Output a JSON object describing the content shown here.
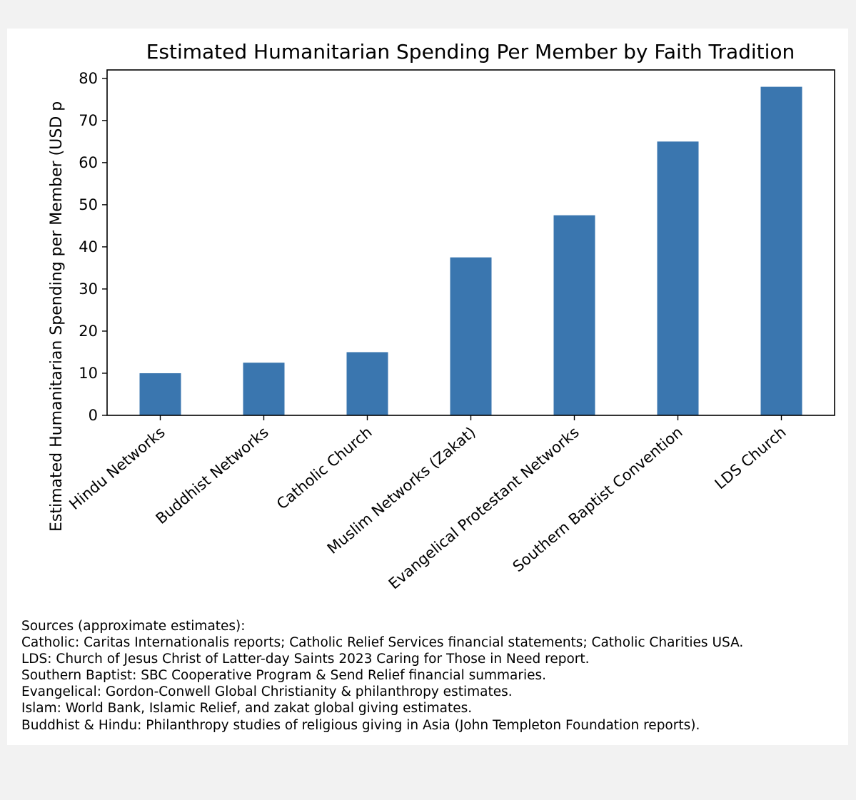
{
  "chart_data": {
    "type": "bar",
    "title": "Estimated Humanitarian Spending Per Member by Faith Tradition",
    "ylabel": "Estimated Humanitarian Spending per Member (USD p",
    "xlabel": "",
    "categories": [
      "Hindu Networks",
      "Buddhist Networks",
      "Catholic Church",
      "Muslim Networks (Zakat)",
      "Evangelical Protestant Networks",
      "Southern Baptist Convention",
      "LDS Church"
    ],
    "values": [
      10,
      12.5,
      15,
      37.5,
      47.5,
      65,
      78
    ],
    "ylim": [
      0,
      82
    ],
    "yticks": [
      0,
      10,
      20,
      30,
      40,
      50,
      60,
      70,
      80
    ],
    "bar_color": "#3a76af",
    "grid": false
  },
  "sources": {
    "heading": "Sources (approximate estimates):",
    "lines": [
      "Catholic: Caritas Internationalis reports; Catholic Relief Services financial statements; Catholic Charities USA.",
      "LDS: Church of Jesus Christ of Latter-day Saints 2023 Caring for Those in Need report.",
      "Southern Baptist: SBC Cooperative Program & Send Relief financial summaries.",
      "Evangelical: Gordon-Conwell Global Christianity & philanthropy estimates.",
      "Islam: World Bank, Islamic Relief, and zakat global giving estimates.",
      "Buddhist & Hindu: Philanthropy studies of religious giving in Asia (John Templeton Foundation reports)."
    ]
  }
}
